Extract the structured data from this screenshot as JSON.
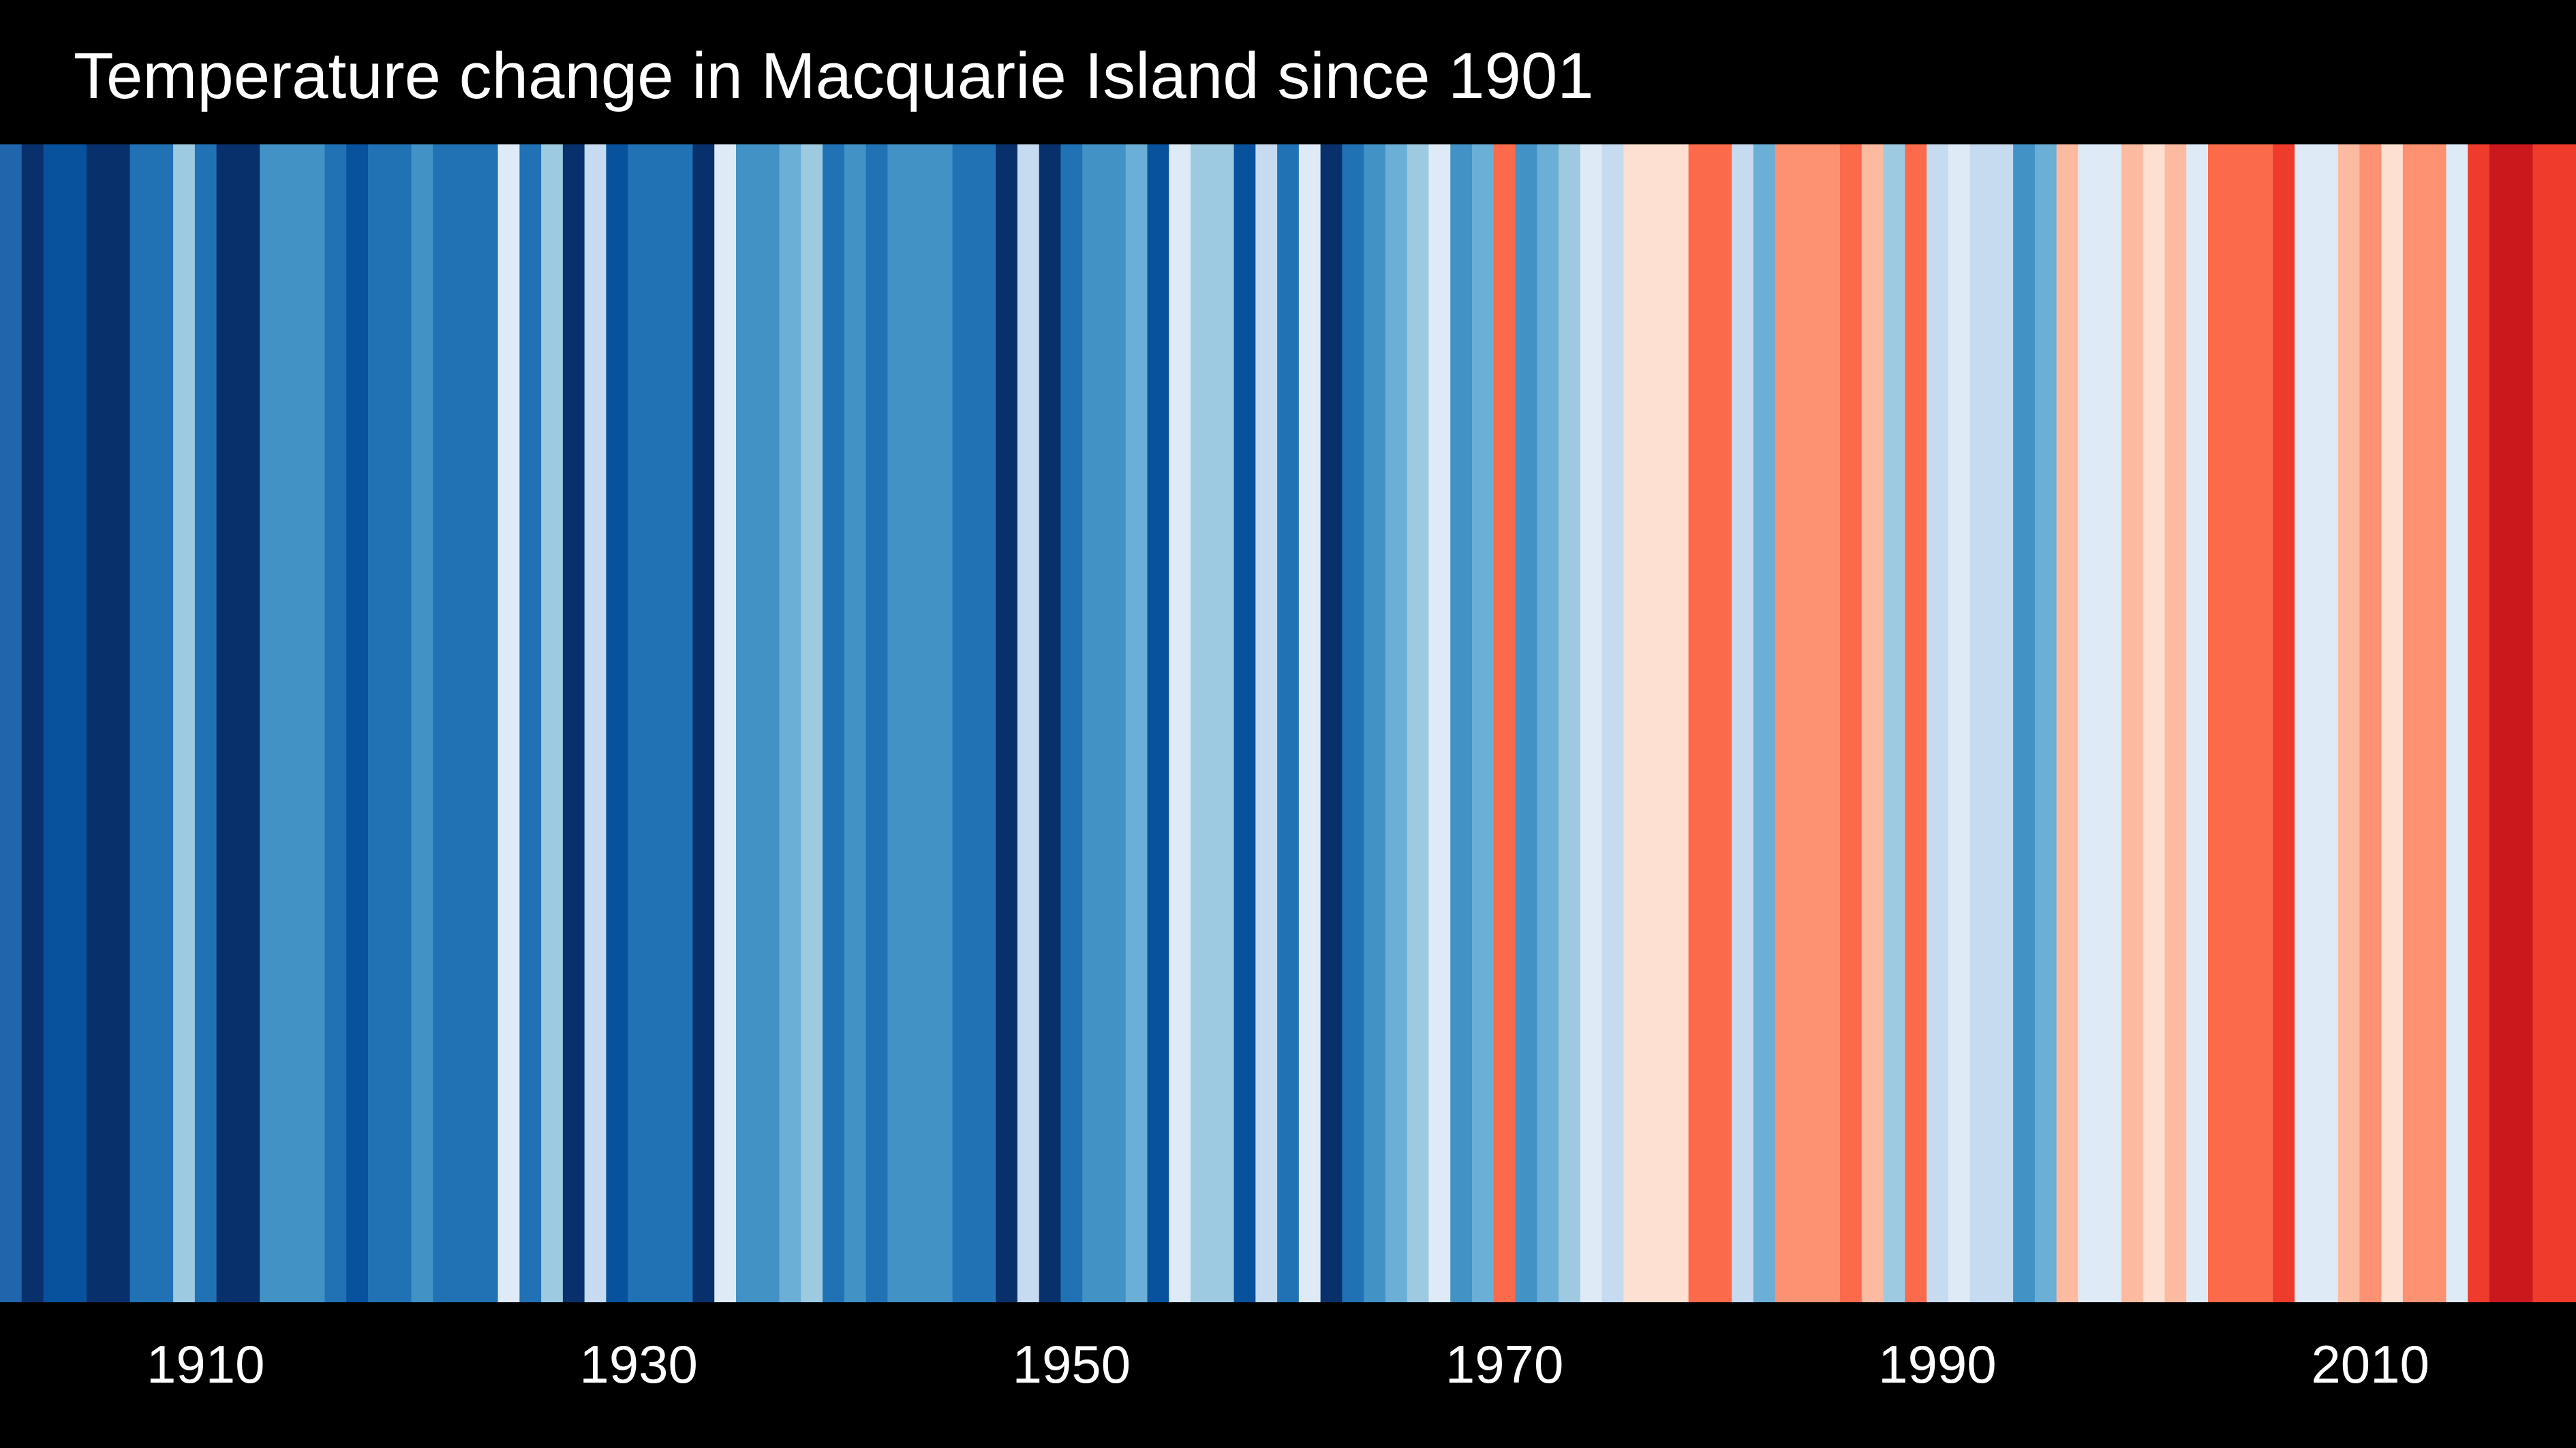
{
  "chart_data": {
    "type": "heatmap",
    "title": "Temperature change in Macquarie Island since 1901",
    "x_ticks": [
      "1910",
      "1930",
      "1950",
      "1970",
      "1990",
      "2010"
    ],
    "x_tick_values": [
      1910,
      1930,
      1950,
      1970,
      1990,
      2010
    ],
    "start_year": 1901,
    "end_year": 2019,
    "colors": [
      "#2166ac",
      "#08306b",
      "#08519c",
      "#08519c",
      "#08306b",
      "#08306b",
      "#2171b5",
      "#2171b5",
      "#9ecae1",
      "#2171b5",
      "#08306b",
      "#08306b",
      "#4292c6",
      "#4292c6",
      "#4292c6",
      "#2171b5",
      "#08519c",
      "#2171b5",
      "#2171b5",
      "#4292c6",
      "#2171b5",
      "#2171b5",
      "#2171b5",
      "#deebf7",
      "#2171b5",
      "#9ecae1",
      "#08306b",
      "#c6dbef",
      "#08519c",
      "#2171b5",
      "#2171b5",
      "#2171b5",
      "#08306b",
      "#deebf7",
      "#4292c6",
      "#4292c6",
      "#6baed6",
      "#9ecae1",
      "#2171b5",
      "#4292c6",
      "#2171b5",
      "#4292c6",
      "#4292c6",
      "#4292c6",
      "#2171b5",
      "#2171b5",
      "#08306b",
      "#c6dbef",
      "#08306b",
      "#2171b5",
      "#4292c6",
      "#4292c6",
      "#6baed6",
      "#08519c",
      "#deebf7",
      "#9ecae1",
      "#9ecae1",
      "#08519c",
      "#c6dbef",
      "#2171b5",
      "#deebf7",
      "#08306b",
      "#2171b5",
      "#4292c6",
      "#6baed6",
      "#9ecae1",
      "#deebf7",
      "#4292c6",
      "#6baed6",
      "#fb6a4a",
      "#4292c6",
      "#6baed6",
      "#9ecae1",
      "#deebf7",
      "#c6dbef",
      "#fee0d2",
      "#fee0d2",
      "#fee0d2",
      "#fb6a4a",
      "#fb6a4a",
      "#c6dbef",
      "#6baed6",
      "#fc9272",
      "#fc9272",
      "#fc9272",
      "#fb6a4a",
      "#fcbba1",
      "#9ecae1",
      "#fb6a4a",
      "#c6dbef",
      "#deebf7",
      "#c6dbef",
      "#c6dbef",
      "#4292c6",
      "#6baed6",
      "#fcbba1",
      "#deebf7",
      "#deebf7",
      "#fcbba1",
      "#fee0d2",
      "#fcbba1",
      "#deebf7",
      "#fb6a4a",
      "#fb6a4a",
      "#fb6a4a",
      "#ef3b2c",
      "#deebf7",
      "#deebf7",
      "#fcbba1",
      "#fc9272",
      "#fee0d2",
      "#fc9272",
      "#fc9272",
      "#deebf7",
      "#ef3b2c",
      "#cb181d",
      "#cb181d",
      "#ef3b2c",
      "#ef3b2c"
    ]
  }
}
